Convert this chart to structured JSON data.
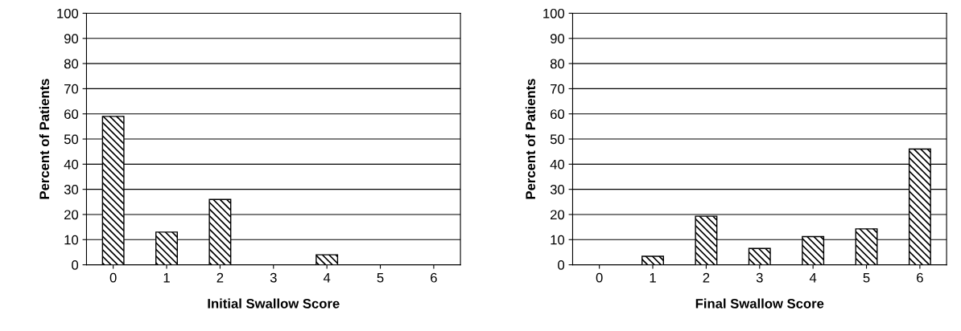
{
  "chart_data": [
    {
      "type": "bar",
      "xlabel": "Initial Swallow Score",
      "ylabel": "Percent of Patients",
      "categories": [
        "0",
        "1",
        "2",
        "3",
        "4",
        "5",
        "6"
      ],
      "values": [
        59,
        13,
        26,
        0,
        4,
        0,
        0
      ],
      "color": "#000000",
      "ylim": [
        0,
        100
      ],
      "yticks": [
        0,
        10,
        20,
        30,
        40,
        50,
        60,
        70,
        80,
        90,
        100
      ],
      "grid": "y"
    },
    {
      "type": "bar",
      "xlabel": "Final Swallow Score",
      "ylabel": "Percent of Patients",
      "categories": [
        "0",
        "1",
        "2",
        "3",
        "4",
        "5",
        "6"
      ],
      "values": [
        0,
        3.4,
        19.3,
        6.5,
        11.2,
        14.3,
        46
      ],
      "color": "#000000",
      "ylim": [
        0,
        100
      ],
      "yticks": [
        0,
        10,
        20,
        30,
        40,
        50,
        60,
        70,
        80,
        90,
        100
      ],
      "grid": "y"
    }
  ]
}
